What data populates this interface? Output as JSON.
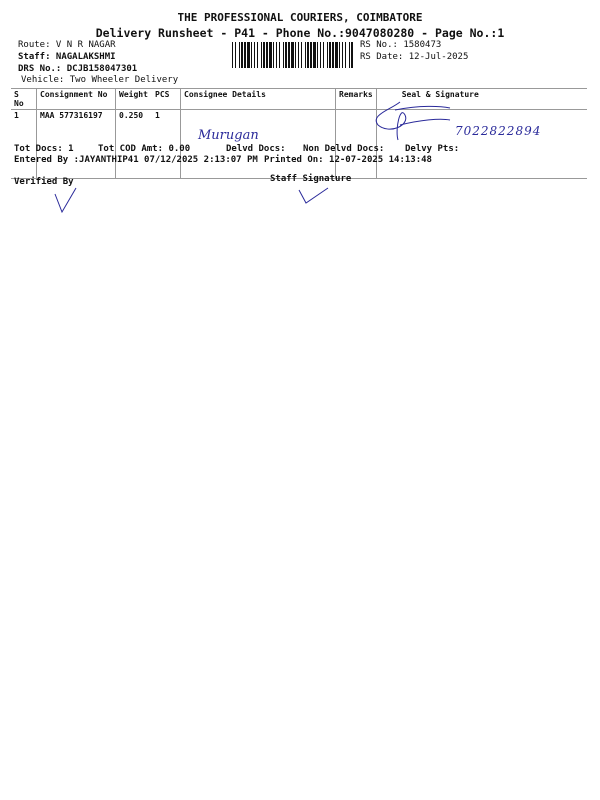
{
  "header": {
    "company": "THE PROFESSIONAL COURIERS, COIMBATORE",
    "subtitle": "Delivery Runsheet - P41 - Phone No.:9047080280 - Page No.:1"
  },
  "info": {
    "route": "Route: V N R NAGAR",
    "staff": "Staff: NAGALAKSHMI",
    "drs": "DRS No.: DCJB158047301",
    "vehicle": "Vehicle: Two Wheeler Delivery",
    "rs_no": "RS No.: 1580473",
    "rs_date": "RS Date: 12-Jul-2025"
  },
  "table": {
    "columns": [
      "S No",
      "Consignment No",
      "Weight",
      "PCS",
      "Consignee Details",
      "Remarks",
      "Seal & Signature"
    ],
    "rows": [
      {
        "sno": "1",
        "consignment": "MAA 577316197",
        "weight": "0.250",
        "pcs": "1",
        "consignee": "",
        "remarks": "",
        "handwritten_name": "Murugan",
        "handwritten_phone": "7022822894"
      }
    ]
  },
  "totals": {
    "tot_docs": "Tot Docs:  1",
    "cod": "Tot COD Amt:   0.00",
    "delvd": "Delvd Docs:",
    "non_delvd": "Non Delvd Docs:",
    "delvy_pts": "Delvy Pts:",
    "entered": "Entered By :JAYANTHIP41 07/12/2025 2:13:07 PM",
    "printed": "Printed On: 12-07-2025 14:13:48"
  },
  "footer": {
    "verified": "Verified By",
    "staff_sig": "Staff Signature"
  },
  "colors": {
    "ink": "#2a2a9a"
  }
}
